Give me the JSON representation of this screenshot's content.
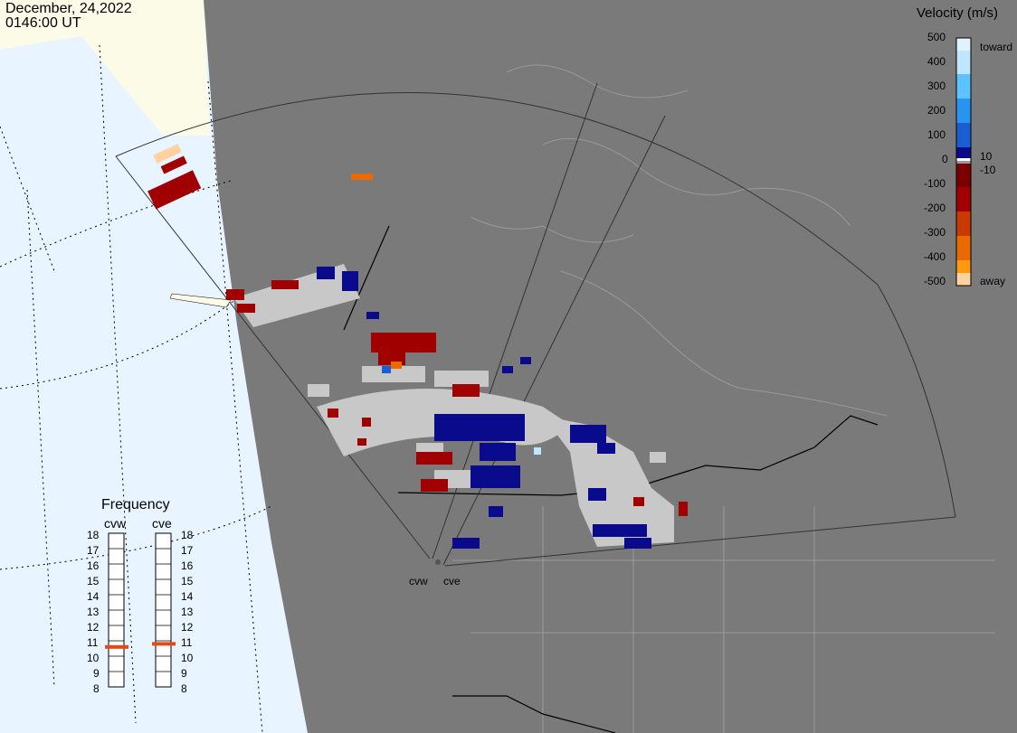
{
  "header": {
    "date": "December, 24,2022",
    "time": "0146:00 UT"
  },
  "legend": {
    "title": "Velocity (m/s)",
    "ticks": [
      "500",
      "400",
      "300",
      "200",
      "100",
      "0",
      "-100",
      "-200",
      "-300",
      "-400",
      "-500"
    ],
    "inner_ticks": [
      "10",
      "-10"
    ],
    "toward_label": "toward",
    "away_label": "away",
    "colors": [
      "#dff4ff",
      "#bfe6ff",
      "#5cc3ff",
      "#2a93ef",
      "#1a5fd0",
      "#1830b0",
      "#0a0a8c",
      "#7a0000",
      "#a00000",
      "#c83a00",
      "#e86a00",
      "#ff9a10",
      "#ffd2a0",
      "#ffe6c8"
    ]
  },
  "frequency": {
    "title": "Frequency",
    "radars": [
      {
        "name": "cvw",
        "value": 10.6
      },
      {
        "name": "cve",
        "value": 10.8
      }
    ],
    "scale": [
      "18",
      "17",
      "16",
      "15",
      "14",
      "13",
      "12",
      "11",
      "10",
      "9",
      "8"
    ]
  },
  "radars": [
    {
      "name": "cvw"
    },
    {
      "name": "cve"
    }
  ],
  "colors": {
    "land": "#7a7a7a",
    "ocean": "#e8f4ff",
    "ice": "#fbfbe8",
    "ground_scatter": "#c8c8c8",
    "border": "#000000"
  }
}
